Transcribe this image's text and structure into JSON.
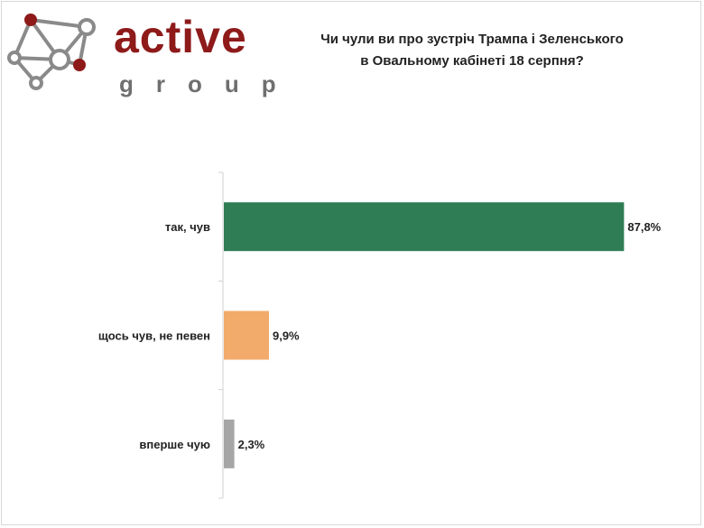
{
  "logo": {
    "name": "active",
    "sub": "group",
    "colors": {
      "dark_red": "#8e1a1a",
      "gray": "#8a8a8a"
    }
  },
  "title": {
    "line1": "Чи чули ви про зустріч Трампа і Зеленського",
    "line2": "в Овальному кабінеті 18 серпня?"
  },
  "chart_data": {
    "type": "bar",
    "orientation": "horizontal",
    "categories": [
      "так, чув",
      "щось чув, не певен",
      "вперше чую"
    ],
    "values": [
      87.8,
      9.9,
      2.3
    ],
    "value_labels": [
      "87,8%",
      "9,9%",
      "2,3%"
    ],
    "colors": [
      "#2e7d55",
      "#f2ab6a",
      "#a6a6a6"
    ],
    "xlim": [
      0,
      100
    ],
    "grid": false,
    "legend": "none",
    "xlabel": "",
    "ylabel": ""
  }
}
